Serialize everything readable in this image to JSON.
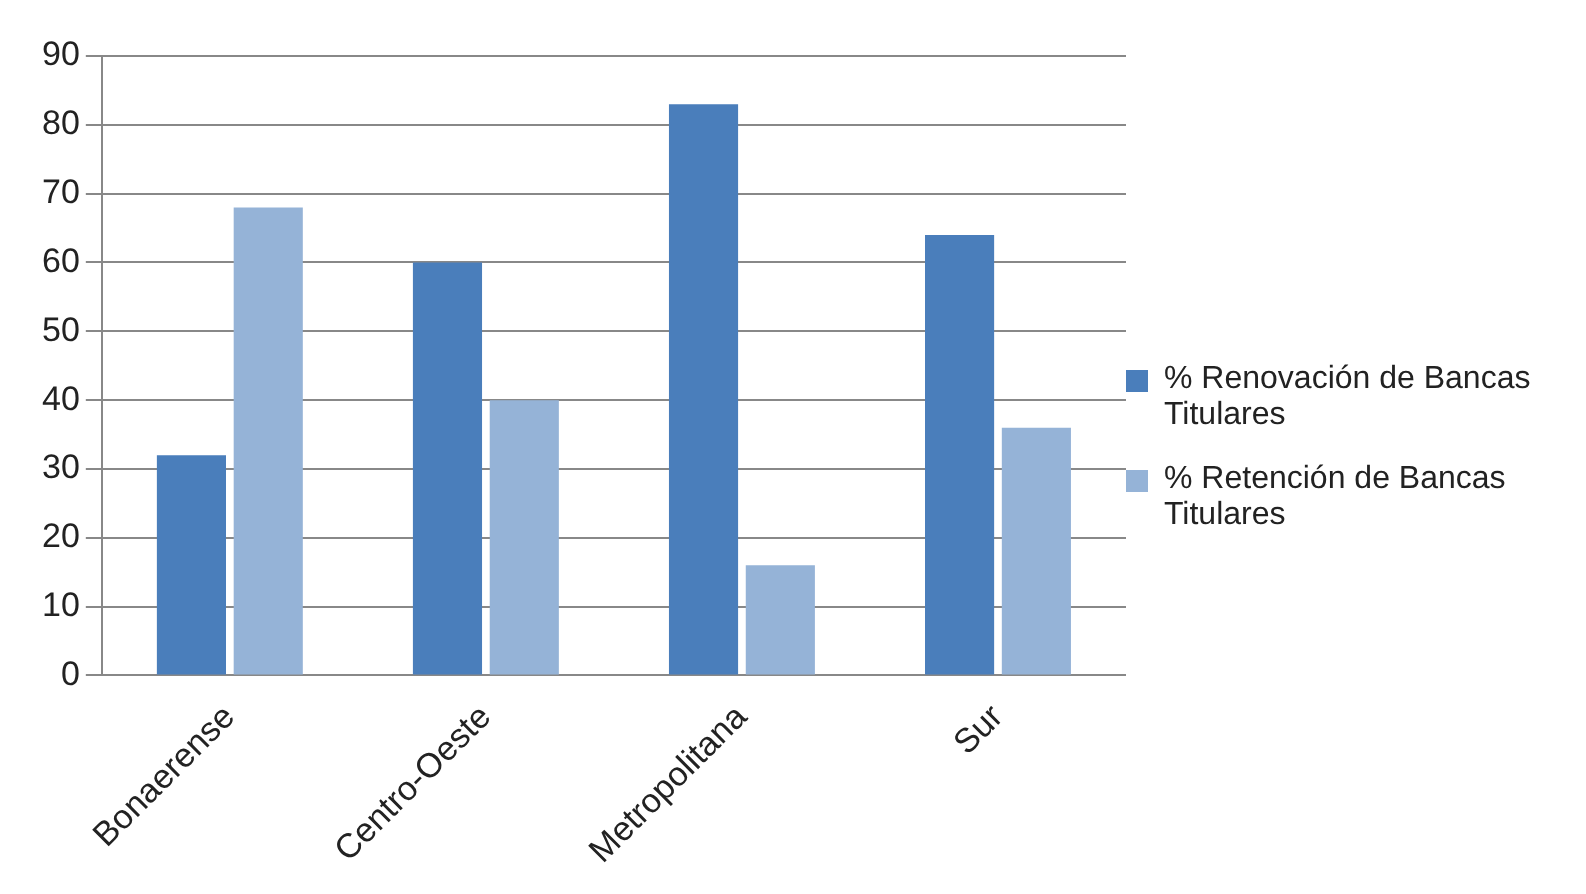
{
  "chart_data": {
    "type": "bar",
    "categories": [
      "Bonaerense",
      "Centro-Oeste",
      "Metropolitana",
      "Sur"
    ],
    "series": [
      {
        "name": "% Renovación de Bancas Titulares",
        "color": "#4a7ebb",
        "values": [
          32,
          60,
          83,
          64
        ]
      },
      {
        "name": "% Retención de Bancas Titulares",
        "color": "#95b3d7",
        "values": [
          68,
          40,
          16,
          36
        ]
      }
    ],
    "ylim": [
      0,
      90
    ],
    "yticks": [
      0,
      10,
      20,
      30,
      40,
      50,
      60,
      70,
      80,
      90
    ],
    "grid": "y",
    "legend": "right"
  }
}
